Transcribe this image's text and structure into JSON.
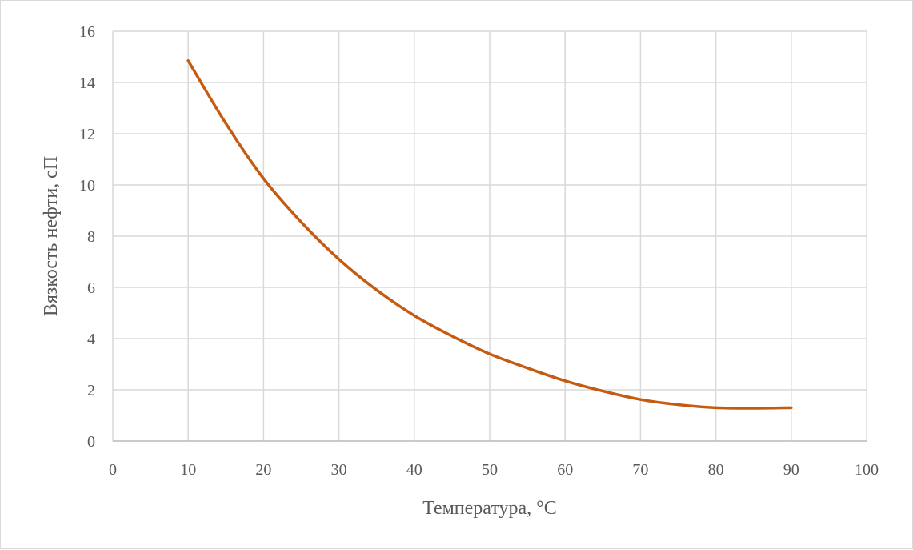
{
  "chart_data": {
    "type": "line",
    "title": "",
    "xlabel": "Температура,  °C",
    "ylabel": "Вязкость нефти, сП",
    "xlim": [
      0,
      100
    ],
    "ylim": [
      0,
      16
    ],
    "x_ticks": [
      0,
      10,
      20,
      30,
      40,
      50,
      60,
      70,
      80,
      90,
      100
    ],
    "y_ticks": [
      0,
      2,
      4,
      6,
      8,
      10,
      12,
      14,
      16
    ],
    "grid": true,
    "legend": "none",
    "series": [
      {
        "color": "#c55a11",
        "x": [
          10,
          15,
          20,
          25,
          30,
          35,
          40,
          45,
          50,
          55,
          60,
          65,
          70,
          75,
          80,
          85,
          90
        ],
        "y": [
          14.85,
          12.4,
          10.25,
          8.55,
          7.1,
          5.9,
          4.9,
          4.1,
          3.4,
          2.85,
          2.35,
          1.95,
          1.62,
          1.42,
          1.3,
          1.28,
          1.3
        ]
      }
    ]
  }
}
